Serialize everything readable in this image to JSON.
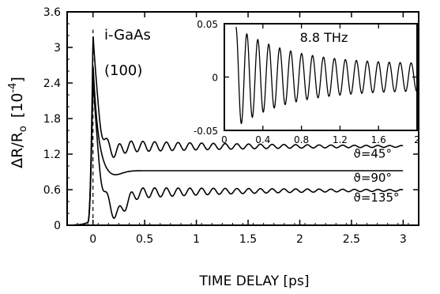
{
  "chart_data": [
    {
      "type": "line",
      "title": "",
      "xlabel": "TIME DELAY [ps]",
      "ylabel": "ΔR/R",
      "ylabel_sub": "o",
      "ylabel_units": "[10",
      "ylabel_exp": "-4",
      "ylabel_close": "]",
      "xlim": [
        -0.25,
        3.15
      ],
      "ylim": [
        0,
        3.6
      ],
      "xticks": [
        0,
        0.5,
        1,
        1.5,
        2,
        2.5,
        3
      ],
      "xtick_labels": [
        "0",
        "0.5",
        "1",
        "1.5",
        "2",
        "2.5",
        "3"
      ],
      "yticks": [
        0,
        0.6,
        1.2,
        1.8,
        2.4,
        3,
        3.6
      ],
      "ytick_labels": [
        "0",
        "0.6",
        "1.2",
        "1.8",
        "2.4",
        "3",
        "3.6"
      ],
      "annotations": [
        "i-GaAs",
        "(100)"
      ],
      "series": [
        {
          "name": "ϑ=45°",
          "peak": 3.25,
          "baseline": 1.33,
          "osc_amplitude": 0.12,
          "frequency_THz": 8.8
        },
        {
          "name": "ϑ=90°",
          "peak": 2.75,
          "baseline": 0.92,
          "osc_amplitude": 0.0,
          "frequency_THz": 8.8
        },
        {
          "name": "ϑ=135°",
          "peak": 2.6,
          "baseline": 0.59,
          "osc_amplitude": 0.12,
          "frequency_THz": 8.8
        }
      ],
      "grid": false,
      "legend": "labels beside curves at right"
    },
    {
      "type": "line",
      "title": "",
      "annotation": "8.8 THz",
      "xlim": [
        0,
        2
      ],
      "ylim": [
        -0.05,
        0.05
      ],
      "xticks": [
        0,
        0.4,
        0.8,
        1.2,
        1.6,
        2
      ],
      "xtick_labels": [
        "0",
        "0.4",
        "0.8",
        "1.2",
        "1.6",
        "2"
      ],
      "yticks": [
        -0.05,
        0,
        0.05
      ],
      "ytick_labels": [
        "-0.05",
        "0",
        "0.05"
      ],
      "series": [
        {
          "frequency_THz": 8.8,
          "amplitude_start": 0.047,
          "amplitude_end": 0.012,
          "x_start": 0.12
        }
      ],
      "grid": false
    }
  ]
}
